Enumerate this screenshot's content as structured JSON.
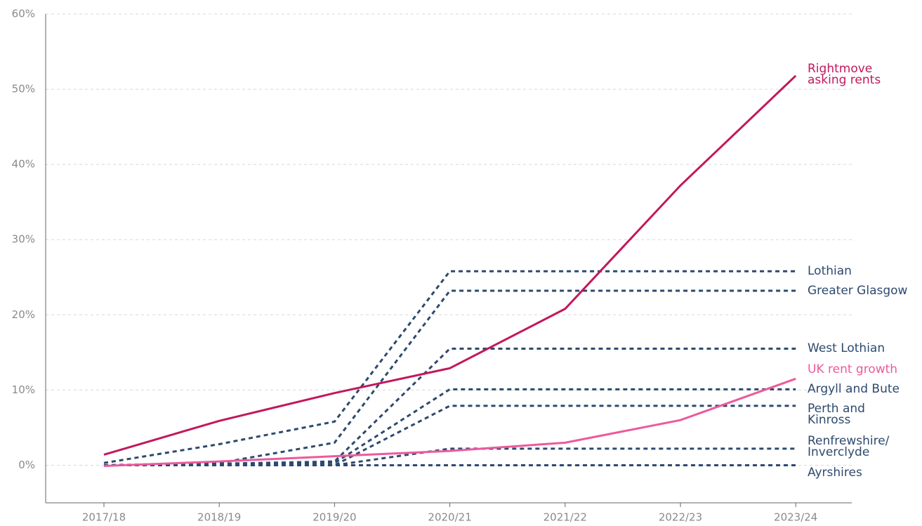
{
  "chart_data": {
    "type": "line",
    "categories": [
      "2017/18",
      "2018/19",
      "2019/20",
      "2020/21",
      "2021/22",
      "2022/23",
      "2023/24"
    ],
    "ylim": [
      -5,
      60
    ],
    "yticks": [
      {
        "value": 0,
        "label": "0%"
      },
      {
        "value": 10,
        "label": "10%"
      },
      {
        "value": 20,
        "label": "20%"
      },
      {
        "value": 30,
        "label": "30%"
      },
      {
        "value": 40,
        "label": "40%"
      },
      {
        "value": 50,
        "label": "50%"
      },
      {
        "value": 60,
        "label": "60%"
      }
    ],
    "grid": true,
    "series": [
      {
        "name": "Rightmove asking rents",
        "color": "#c2185b",
        "style": "solid",
        "values": [
          1.4,
          5.9,
          9.6,
          12.9,
          20.8,
          37.2,
          51.8
        ]
      },
      {
        "name": "UK rent growth",
        "color": "#ec5a9c",
        "style": "solid",
        "values": [
          -0.1,
          0.5,
          1.2,
          1.9,
          3.0,
          6.0,
          11.5
        ]
      },
      {
        "name": "Lothian",
        "color": "#2d4a6e",
        "style": "dashed",
        "values": [
          0.3,
          2.8,
          5.8,
          25.8,
          25.8,
          25.8,
          25.8
        ]
      },
      {
        "name": "Greater Glasgow",
        "color": "#2d4a6e",
        "style": "dashed",
        "values": [
          0,
          0.3,
          3.0,
          23.2,
          23.2,
          23.2,
          23.2
        ]
      },
      {
        "name": "West Lothian",
        "color": "#2d4a6e",
        "style": "dashed",
        "values": [
          0,
          0.2,
          0.5,
          15.5,
          15.5,
          15.5,
          15.5
        ]
      },
      {
        "name": "Argyll and Bute",
        "color": "#2d4a6e",
        "style": "dashed",
        "values": [
          0,
          0,
          0.3,
          10.1,
          10.1,
          10.1,
          10.1
        ]
      },
      {
        "name": "Perth and Kinross",
        "color": "#2d4a6e",
        "style": "dashed",
        "values": [
          0,
          0,
          0,
          7.9,
          7.9,
          7.9,
          7.9
        ]
      },
      {
        "name": "Renfrewshire/Inverclyde",
        "color": "#2d4a6e",
        "style": "dashed",
        "values": [
          0,
          0,
          0,
          2.2,
          2.2,
          2.2,
          2.2
        ]
      },
      {
        "name": "Ayrshires",
        "color": "#2d4a6e",
        "style": "dashed",
        "values": [
          0,
          0,
          0,
          0,
          0,
          0,
          0
        ]
      }
    ]
  }
}
